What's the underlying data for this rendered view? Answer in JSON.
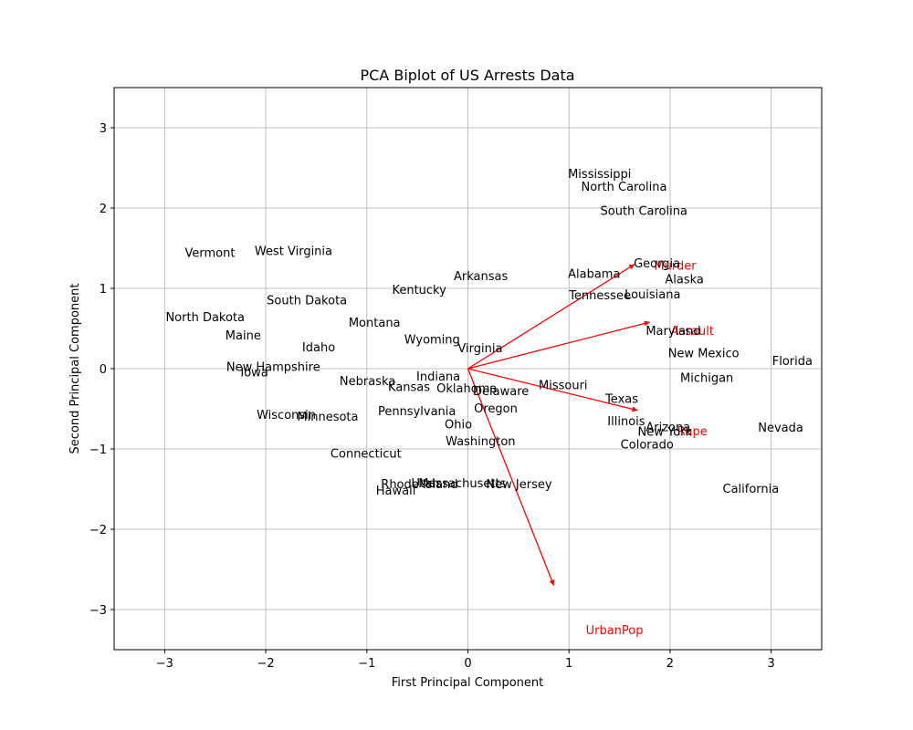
{
  "chart_data": {
    "type": "scatter",
    "title": "PCA Biplot of US Arrests Data",
    "xlabel": "First Principal Component",
    "ylabel": "Second Principal Component",
    "xlim": [
      -3.5,
      3.5
    ],
    "ylim": [
      -3.5,
      3.5
    ],
    "xticks": [
      -3,
      -2,
      -1,
      0,
      1,
      2,
      3
    ],
    "yticks": [
      -3,
      -2,
      -1,
      0,
      1,
      2,
      3
    ],
    "xtick_labels": [
      "−3",
      "−2",
      "−1",
      "0",
      "1",
      "2",
      "3"
    ],
    "ytick_labels": [
      "−3",
      "−2",
      "−1",
      "0",
      "1",
      "2",
      "3"
    ],
    "grid": true,
    "points": [
      {
        "name": "Alabama",
        "x": 0.99,
        "y": 1.19
      },
      {
        "name": "Alaska",
        "x": 1.95,
        "y": 1.12
      },
      {
        "name": "Arizona",
        "x": 1.76,
        "y": -0.72
      },
      {
        "name": "Arkansas",
        "x": -0.14,
        "y": 1.16
      },
      {
        "name": "California",
        "x": 2.52,
        "y": -1.49
      },
      {
        "name": "Colorado",
        "x": 1.51,
        "y": -0.94
      },
      {
        "name": "Connecticut",
        "x": -1.36,
        "y": -1.05
      },
      {
        "name": "Delaware",
        "x": 0.05,
        "y": -0.27
      },
      {
        "name": "Florida",
        "x": 3.01,
        "y": 0.1
      },
      {
        "name": "Georgia",
        "x": 1.64,
        "y": 1.32
      },
      {
        "name": "Hawaii",
        "x": -0.91,
        "y": -1.51
      },
      {
        "name": "Idaho",
        "x": -1.64,
        "y": 0.27
      },
      {
        "name": "Illinois",
        "x": 1.38,
        "y": -0.65
      },
      {
        "name": "Indiana",
        "x": -0.51,
        "y": -0.09
      },
      {
        "name": "Iowa",
        "x": -2.25,
        "y": -0.04
      },
      {
        "name": "Kansas",
        "x": -0.79,
        "y": -0.22
      },
      {
        "name": "Kentucky",
        "x": -0.75,
        "y": 0.99
      },
      {
        "name": "Louisiana",
        "x": 1.55,
        "y": 0.93
      },
      {
        "name": "Maine",
        "x": -2.4,
        "y": 0.42
      },
      {
        "name": "Maryland",
        "x": 1.76,
        "y": 0.48
      },
      {
        "name": "Massachusetts",
        "x": -0.49,
        "y": -1.42
      },
      {
        "name": "Michigan",
        "x": 2.1,
        "y": -0.11
      },
      {
        "name": "Minnesota",
        "x": -1.69,
        "y": -0.59
      },
      {
        "name": "Mississippi",
        "x": 0.99,
        "y": 2.43
      },
      {
        "name": "Missouri",
        "x": 0.7,
        "y": -0.2
      },
      {
        "name": "Montana",
        "x": -1.18,
        "y": 0.58
      },
      {
        "name": "Nebraska",
        "x": -1.27,
        "y": -0.15
      },
      {
        "name": "Nevada",
        "x": 2.87,
        "y": -0.73
      },
      {
        "name": "New Hampshire",
        "x": -2.39,
        "y": 0.03
      },
      {
        "name": "New Jersey",
        "x": 0.18,
        "y": -1.43
      },
      {
        "name": "New Mexico",
        "x": 1.98,
        "y": 0.2
      },
      {
        "name": "New York",
        "x": 1.68,
        "y": -0.78
      },
      {
        "name": "North Carolina",
        "x": 1.12,
        "y": 2.27
      },
      {
        "name": "North Dakota",
        "x": -2.99,
        "y": 0.65
      },
      {
        "name": "Ohio",
        "x": -0.23,
        "y": -0.69
      },
      {
        "name": "Oklahoma",
        "x": -0.31,
        "y": -0.24
      },
      {
        "name": "Oregon",
        "x": 0.06,
        "y": -0.49
      },
      {
        "name": "Pennsylvania",
        "x": -0.89,
        "y": -0.52
      },
      {
        "name": "Rhode Island",
        "x": -0.86,
        "y": -1.43
      },
      {
        "name": "South Carolina",
        "x": 1.31,
        "y": 1.97
      },
      {
        "name": "South Dakota",
        "x": -1.99,
        "y": 0.86
      },
      {
        "name": "Tennessee",
        "x": 1.0,
        "y": 0.92
      },
      {
        "name": "Texas",
        "x": 1.36,
        "y": -0.37
      },
      {
        "name": "Utah",
        "x": -0.56,
        "y": -1.42
      },
      {
        "name": "Vermont",
        "x": -2.8,
        "y": 1.45
      },
      {
        "name": "Virginia",
        "x": -0.1,
        "y": 0.26
      },
      {
        "name": "Washington",
        "x": -0.22,
        "y": -0.9
      },
      {
        "name": "West Virginia",
        "x": -2.11,
        "y": 1.47
      },
      {
        "name": "Wisconsin",
        "x": -2.09,
        "y": -0.57
      },
      {
        "name": "Wyoming",
        "x": -0.63,
        "y": 0.37
      }
    ],
    "loadings": [
      {
        "name": "Murder",
        "x": 1.65,
        "y": 1.3,
        "label_x": 2.05,
        "label_y": 1.29
      },
      {
        "name": "Assault",
        "x": 1.8,
        "y": 0.58,
        "label_x": 2.22,
        "label_y": 0.48
      },
      {
        "name": "UrbanPop",
        "x": 0.85,
        "y": -2.7,
        "label_x": 1.45,
        "label_y": -3.25
      },
      {
        "name": "Rape",
        "x": 1.68,
        "y": -0.52,
        "label_x": 2.22,
        "label_y": -0.77
      }
    ],
    "colors": {
      "points": "#000000",
      "loadings": "#ff0000",
      "grid": "#b0b0b0"
    }
  }
}
